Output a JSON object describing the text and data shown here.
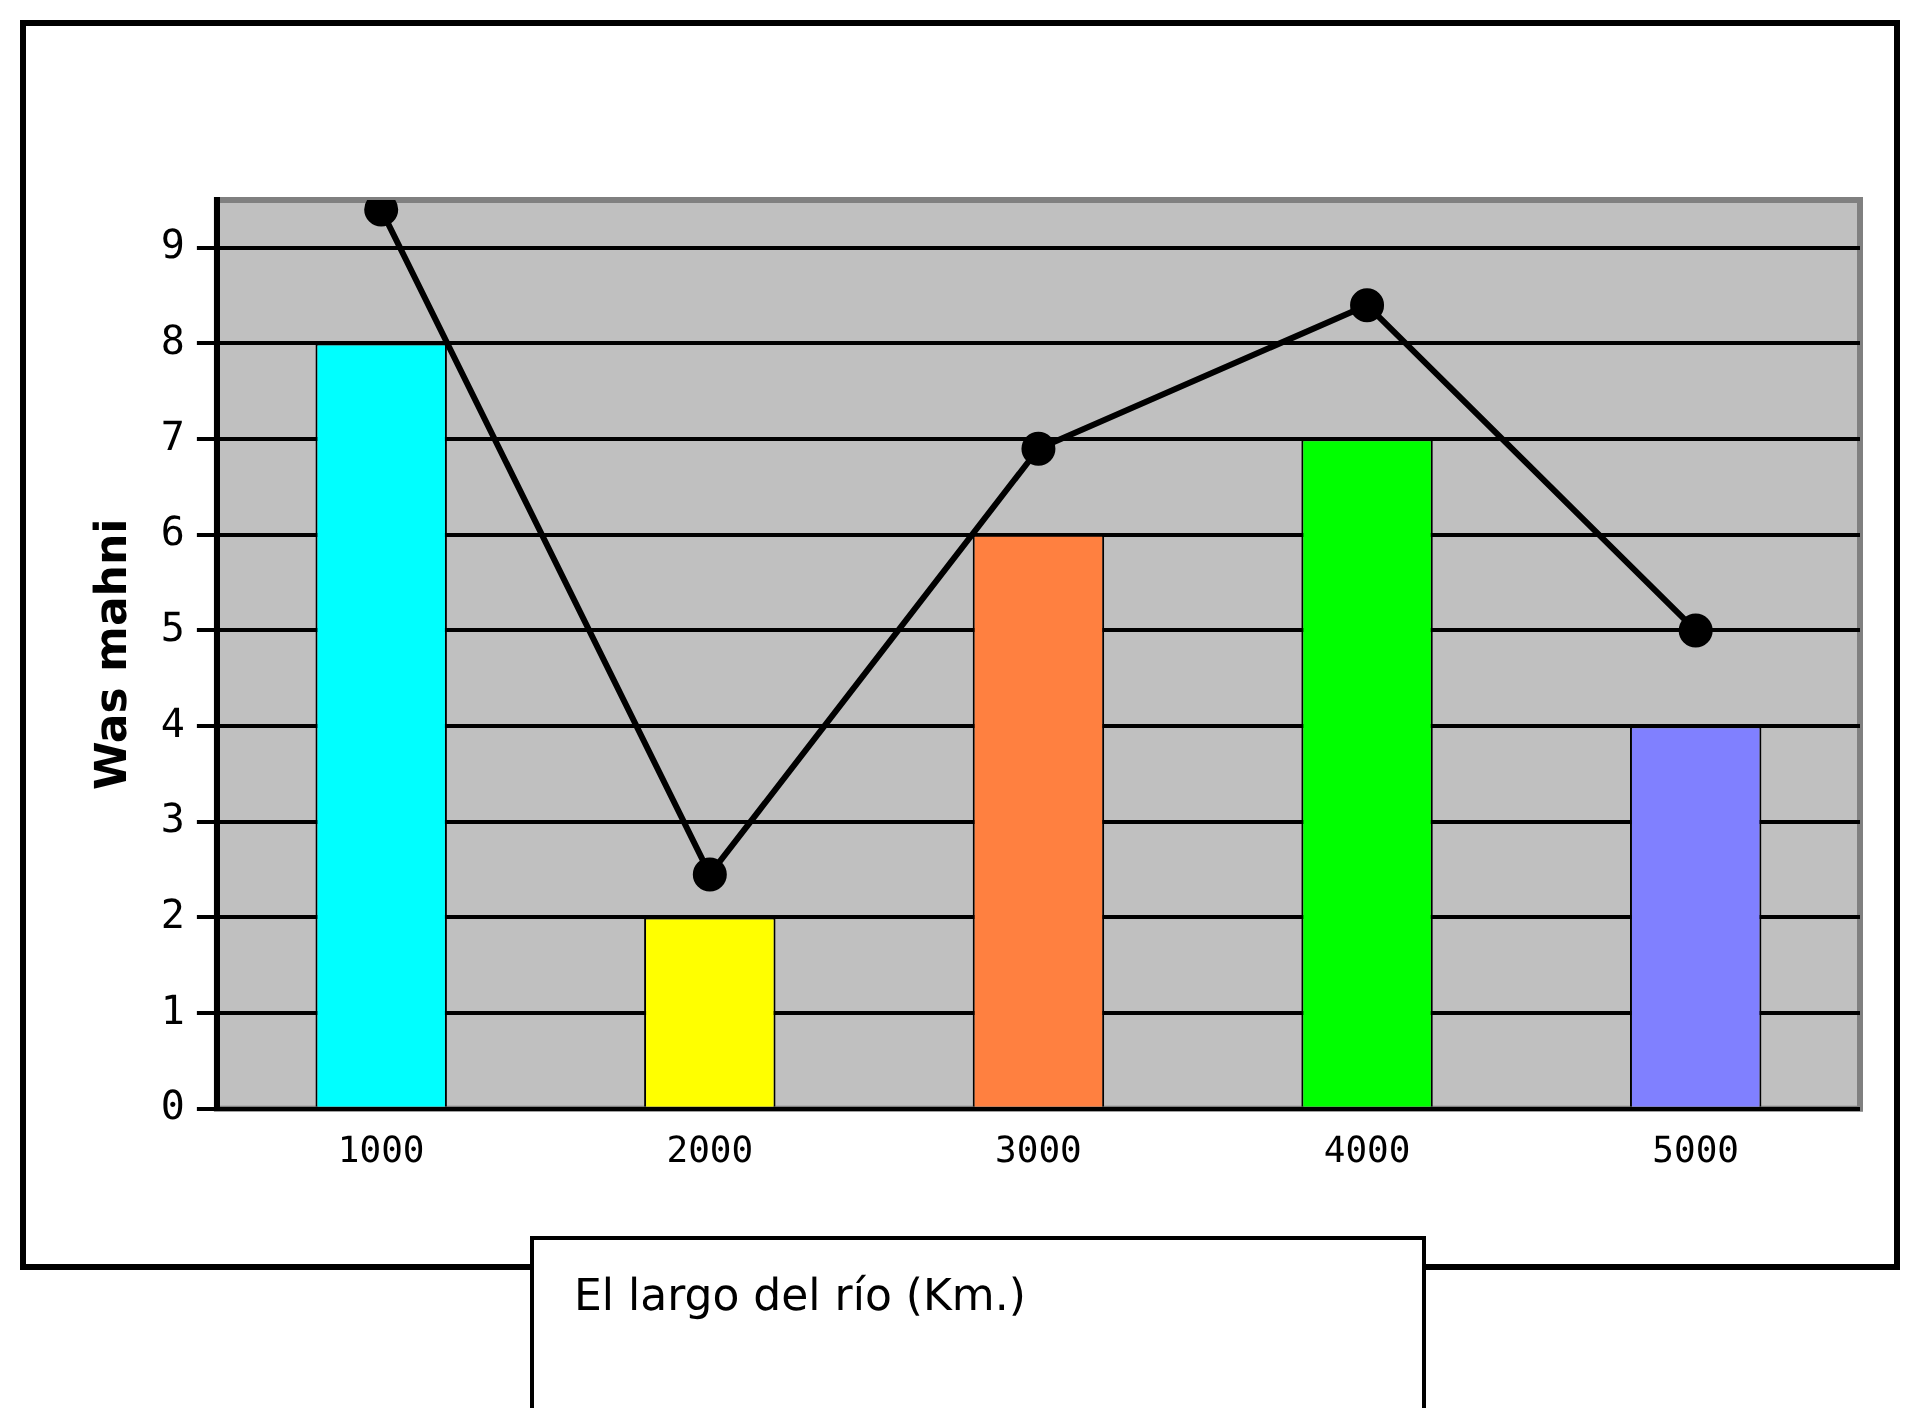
{
  "chart_data": {
    "type": "bar",
    "xlabel": "El largo del río (Km.)",
    "ylabel": "Was mahni",
    "categories": [
      "1000",
      "2000",
      "3000",
      "4000",
      "5000"
    ],
    "series": [
      {
        "values": [
          8,
          2,
          6,
          7,
          4
        ],
        "colors": [
          "#00ffff",
          "#ffff00",
          "#ff8040",
          "#00ff00",
          "#8080ff"
        ]
      },
      {
        "type": "line",
        "color": "#000000",
        "values": [
          9.4,
          2.45,
          6.9,
          8.4,
          5.0
        ]
      }
    ],
    "ylim": [
      0,
      9.5
    ],
    "yticks": [
      0,
      1,
      2,
      3,
      4,
      5,
      6,
      7,
      8,
      9
    ],
    "grid": "y",
    "legend": false,
    "marker": "circle",
    "line_style": "solid"
  }
}
